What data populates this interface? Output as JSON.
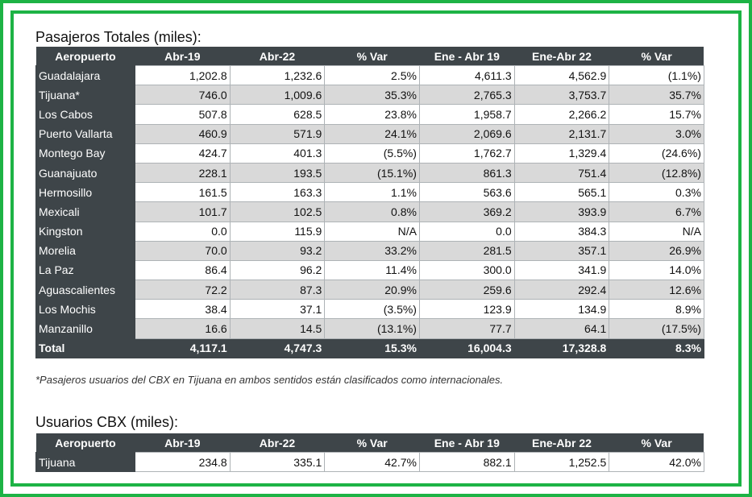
{
  "section1": {
    "title": "Pasajeros Totales (miles):",
    "headers": [
      "Aeropuerto",
      "Abr-19",
      "Abr-22",
      "% Var",
      "Ene - Abr 19",
      "Ene-Abr 22",
      "% Var"
    ],
    "rows": [
      {
        "airport": "Guadalajara",
        "values": [
          "1,202.8",
          "1,232.6",
          "2.5%",
          "4,611.3",
          "4,562.9",
          "(1.1%)"
        ]
      },
      {
        "airport": "Tijuana*",
        "values": [
          "746.0",
          "1,009.6",
          "35.3%",
          "2,765.3",
          "3,753.7",
          "35.7%"
        ]
      },
      {
        "airport": "Los Cabos",
        "values": [
          "507.8",
          "628.5",
          "23.8%",
          "1,958.7",
          "2,266.2",
          "15.7%"
        ]
      },
      {
        "airport": "Puerto Vallarta",
        "values": [
          "460.9",
          "571.9",
          "24.1%",
          "2,069.6",
          "2,131.7",
          "3.0%"
        ]
      },
      {
        "airport": "Montego Bay",
        "values": [
          "424.7",
          "401.3",
          "(5.5%)",
          "1,762.7",
          "1,329.4",
          "(24.6%)"
        ]
      },
      {
        "airport": "Guanajuato",
        "values": [
          "228.1",
          "193.5",
          "(15.1%)",
          "861.3",
          "751.4",
          "(12.8%)"
        ]
      },
      {
        "airport": "Hermosillo",
        "values": [
          "161.5",
          "163.3",
          "1.1%",
          "563.6",
          "565.1",
          "0.3%"
        ]
      },
      {
        "airport": "Mexicali",
        "values": [
          "101.7",
          "102.5",
          "0.8%",
          "369.2",
          "393.9",
          "6.7%"
        ]
      },
      {
        "airport": "Kingston",
        "values": [
          "0.0",
          "115.9",
          "N/A",
          "0.0",
          "384.3",
          "N/A"
        ]
      },
      {
        "airport": "Morelia",
        "values": [
          "70.0",
          "93.2",
          "33.2%",
          "281.5",
          "357.1",
          "26.9%"
        ]
      },
      {
        "airport": "La Paz",
        "values": [
          "86.4",
          "96.2",
          "11.4%",
          "300.0",
          "341.9",
          "14.0%"
        ]
      },
      {
        "airport": "Aguascalientes",
        "values": [
          "72.2",
          "87.3",
          "20.9%",
          "259.6",
          "292.4",
          "12.6%"
        ]
      },
      {
        "airport": "Los Mochis",
        "values": [
          "38.4",
          "37.1",
          "(3.5%)",
          "123.9",
          "134.9",
          "8.9%"
        ]
      },
      {
        "airport": "Manzanillo",
        "values": [
          "16.6",
          "14.5",
          "(13.1%)",
          "77.7",
          "64.1",
          "(17.5%)"
        ]
      }
    ],
    "total": {
      "label": "Total",
      "values": [
        "4,117.1",
        "4,747.3",
        "15.3%",
        "16,004.3",
        "17,328.8",
        "8.3%"
      ]
    },
    "footnote": "*Pasajeros usuarios del CBX en Tijuana en ambos sentidos están clasificados como internacionales."
  },
  "section2": {
    "title": "Usuarios CBX (miles):",
    "headers": [
      "Aeropuerto",
      "Abr-19",
      "Abr-22",
      "% Var",
      "Ene - Abr 19",
      "Ene-Abr 22",
      "% Var"
    ],
    "rows": [
      {
        "airport": "Tijuana",
        "values": [
          "234.8",
          "335.1",
          "42.7%",
          "882.1",
          "1,252.5",
          "42.0%"
        ]
      }
    ]
  },
  "colors": {
    "frame_green": "#1db345",
    "header_dark": "#3e4549",
    "stripe_gray": "#d9d9d9"
  }
}
